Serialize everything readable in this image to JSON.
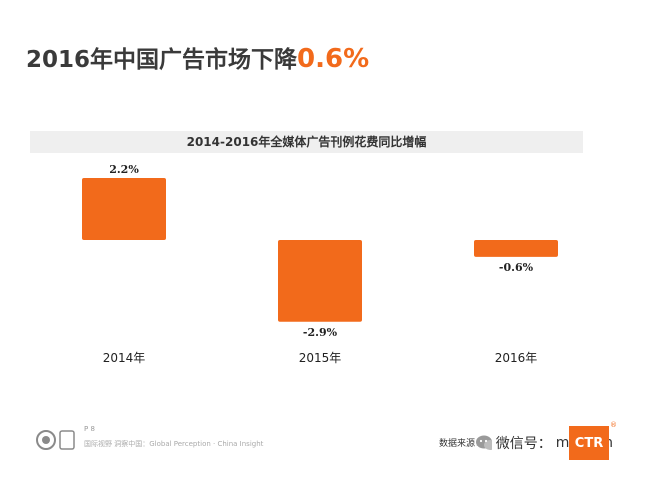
{
  "header": {
    "title_main": "2016年中国广告市场下降",
    "title_highlight": "0.6%",
    "highlight_color": "#f26a1b"
  },
  "chart_data": {
    "type": "bar",
    "title": "2014-2016年全媒体广告刊例花费同比增幅",
    "categories": [
      "2014年",
      "2015年",
      "2016年"
    ],
    "values": [
      2.2,
      -2.9,
      -0.6
    ],
    "data_labels": [
      "2.2%",
      "-2.9%",
      "-0.6%"
    ],
    "ylim": [
      -3,
      2.5
    ],
    "grid": false,
    "bar_color": "#f26a1b"
  },
  "footer": {
    "page": "P 8",
    "tagline": "国际视野 洞察中国：Global Perception · China Insight",
    "source": "数据来源：",
    "watermark": "微信号：",
    "watermark_suffix": "mediam",
    "brand_logo": "CTR",
    "brand_mark": "®",
    "icons": [
      "logo-seal-icon",
      "wechat-icon"
    ]
  }
}
